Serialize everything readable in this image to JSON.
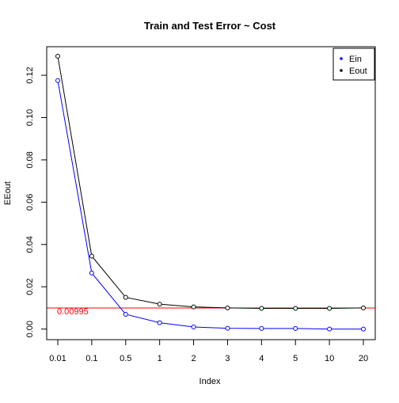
{
  "chart_data": {
    "type": "line",
    "title": "Train and Test Error ~ Cost",
    "xlabel": "Index",
    "ylabel": "EEout",
    "categories": [
      "0.01",
      "0.1",
      "0.5",
      "1",
      "2",
      "3",
      "4",
      "5",
      "10",
      "20"
    ],
    "y_ticks": [
      "0.00",
      "0.02",
      "0.04",
      "0.06",
      "0.08",
      "0.10",
      "0.12"
    ],
    "y_tick_values": [
      0,
      0.02,
      0.04,
      0.06,
      0.08,
      0.1,
      0.12
    ],
    "ylim": [
      -0.005,
      0.1335
    ],
    "series": [
      {
        "name": "Ein",
        "color": "#0000ff",
        "values": [
          0.1175,
          0.0265,
          0.007,
          0.003,
          0.001,
          0.0004,
          0.0003,
          0.0003,
          0.0,
          0.0
        ]
      },
      {
        "name": "Eout",
        "color": "#000000",
        "values": [
          0.129,
          0.0345,
          0.015,
          0.0118,
          0.0105,
          0.01,
          0.0098,
          0.0098,
          0.0098,
          0.01
        ]
      }
    ],
    "reference_line": {
      "value": 0.00995,
      "label": "0.00995",
      "color": "#ff0000"
    },
    "legend": {
      "placement": "top-right",
      "entries": [
        "Ein",
        "Eout"
      ]
    },
    "grid": false,
    "marker": "open-circle"
  }
}
